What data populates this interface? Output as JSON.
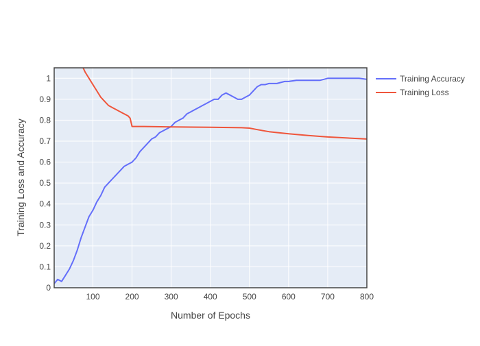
{
  "chart_data": {
    "type": "line",
    "title": "",
    "xlabel": "Number of Epochs",
    "ylabel": "Training Loss and Accuracy",
    "xlim": [
      1,
      800
    ],
    "ylim": [
      0,
      1.05
    ],
    "x_ticks": [
      100,
      200,
      300,
      400,
      500,
      600,
      700,
      800
    ],
    "y_ticks": [
      0,
      0.1,
      0.2,
      0.3,
      0.4,
      0.5,
      0.6,
      0.7,
      0.8,
      0.9,
      1
    ],
    "grid": true,
    "legend_position": "top-right outside plot",
    "background_color": "#e5ecf6",
    "series": [
      {
        "name": "Training Accuracy",
        "color": "#636efa",
        "x": [
          1,
          10,
          20,
          30,
          40,
          50,
          60,
          70,
          80,
          90,
          100,
          110,
          120,
          130,
          140,
          150,
          160,
          170,
          180,
          190,
          200,
          210,
          220,
          230,
          240,
          250,
          260,
          270,
          280,
          290,
          300,
          310,
          320,
          330,
          340,
          350,
          360,
          370,
          380,
          390,
          400,
          410,
          420,
          430,
          440,
          450,
          460,
          470,
          480,
          490,
          500,
          510,
          520,
          530,
          540,
          550,
          560,
          570,
          580,
          590,
          600,
          620,
          640,
          660,
          680,
          700,
          720,
          740,
          760,
          780,
          800
        ],
        "y": [
          0.02,
          0.04,
          0.03,
          0.06,
          0.09,
          0.13,
          0.18,
          0.24,
          0.29,
          0.34,
          0.37,
          0.41,
          0.44,
          0.48,
          0.5,
          0.52,
          0.54,
          0.56,
          0.58,
          0.59,
          0.6,
          0.62,
          0.65,
          0.67,
          0.69,
          0.71,
          0.72,
          0.74,
          0.75,
          0.76,
          0.77,
          0.79,
          0.8,
          0.81,
          0.83,
          0.84,
          0.85,
          0.86,
          0.87,
          0.88,
          0.89,
          0.9,
          0.9,
          0.92,
          0.93,
          0.92,
          0.91,
          0.9,
          0.9,
          0.91,
          0.92,
          0.94,
          0.96,
          0.97,
          0.97,
          0.975,
          0.975,
          0.975,
          0.98,
          0.985,
          0.985,
          0.99,
          0.99,
          0.99,
          0.99,
          1.0,
          1.0,
          1.0,
          1.0,
          1.0,
          0.995
        ]
      },
      {
        "name": "Training Loss",
        "color": "#ef553b",
        "x": [
          75,
          80,
          90,
          100,
          110,
          120,
          130,
          140,
          150,
          160,
          170,
          180,
          190,
          195,
          200,
          210,
          230,
          260,
          300,
          350,
          400,
          450,
          480,
          500,
          520,
          550,
          600,
          650,
          700,
          750,
          800
        ],
        "y": [
          1.05,
          1.03,
          1.0,
          0.97,
          0.94,
          0.91,
          0.89,
          0.87,
          0.86,
          0.85,
          0.84,
          0.83,
          0.82,
          0.81,
          0.77,
          0.77,
          0.77,
          0.769,
          0.768,
          0.767,
          0.766,
          0.765,
          0.764,
          0.762,
          0.755,
          0.745,
          0.735,
          0.727,
          0.72,
          0.715,
          0.71
        ]
      }
    ]
  }
}
